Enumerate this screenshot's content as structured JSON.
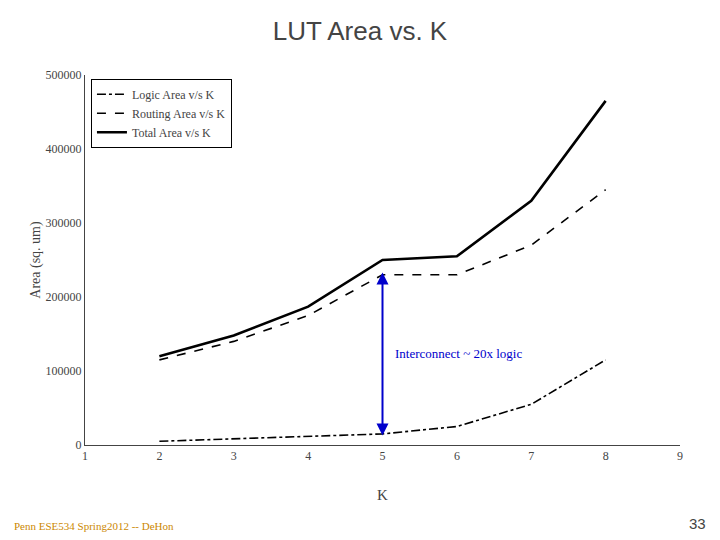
{
  "chart_data": {
    "type": "line",
    "title": "LUT Area vs. K",
    "xlabel": "K",
    "ylabel": "Area (sq. um)",
    "x": [
      2,
      3,
      4,
      5,
      6,
      7,
      8
    ],
    "series": [
      {
        "name": "Logic Area v/s K",
        "color": "#000000",
        "line_style": "dashdot",
        "values": [
          5000,
          8000,
          12000,
          15000,
          25000,
          55000,
          115000
        ]
      },
      {
        "name": "Routing Area v/s K",
        "color": "#000000",
        "line_style": "dash",
        "values": [
          115000,
          140000,
          175000,
          230000,
          230000,
          270000,
          345000
        ]
      },
      {
        "name": "Total Area v/s K",
        "color": "#000000",
        "line_style": "solid",
        "values": [
          120000,
          148000,
          187000,
          250000,
          255000,
          330000,
          465000
        ]
      }
    ],
    "xlim": [
      1,
      9
    ],
    "xticks": [
      1,
      2,
      3,
      4,
      5,
      6,
      7,
      8,
      9
    ],
    "ylim": [
      0,
      500000
    ],
    "yticks": [
      0,
      100000,
      200000,
      300000,
      400000,
      500000
    ],
    "grid": false,
    "legend": "upper left",
    "annotations": [
      {
        "text": "Interconnect ~ 20x logic",
        "color": "#0000cc",
        "x": 5.0,
        "y_top": 235000,
        "y_bottom": 13000
      }
    ],
    "footer": [
      {
        "text": "Penn ESE534 Spring2012 -- DeHon",
        "color": "#cc8800"
      },
      {
        "text": "33"
      }
    ]
  }
}
